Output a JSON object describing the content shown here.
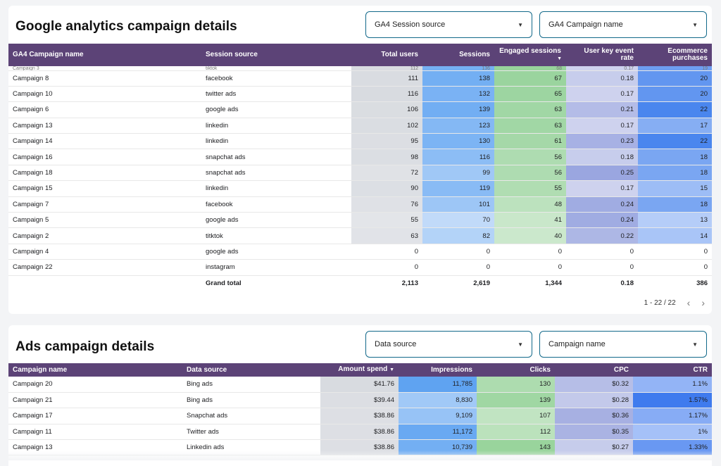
{
  "ga_section": {
    "title": "Google analytics campaign details",
    "filters": [
      {
        "label": "GA4 Session source"
      },
      {
        "label": "GA4 Campaign name"
      }
    ],
    "columns": [
      "GA4 Campaign name",
      "Session source",
      "Total users",
      "Sessions",
      "Engaged sessions",
      "User key event rate",
      "Ecommerce purchases"
    ],
    "partial_row": [
      "Campaign 3",
      "tiktok",
      "112",
      "136",
      "68",
      "0.17",
      "19"
    ],
    "rows": [
      [
        "Campaign 8",
        "facebook",
        "111",
        "138",
        "67",
        "0.18",
        "20"
      ],
      [
        "Campaign 10",
        "twitter ads",
        "116",
        "132",
        "65",
        "0.17",
        "20"
      ],
      [
        "Campaign 6",
        "google ads",
        "106",
        "139",
        "63",
        "0.21",
        "22"
      ],
      [
        "Campaign 13",
        "linkedin",
        "102",
        "123",
        "63",
        "0.17",
        "17"
      ],
      [
        "Campaign 14",
        "linkedin",
        "95",
        "130",
        "61",
        "0.23",
        "22"
      ],
      [
        "Campaign 16",
        "snapchat ads",
        "98",
        "116",
        "56",
        "0.18",
        "18"
      ],
      [
        "Campaign 18",
        "snapchat ads",
        "72",
        "99",
        "56",
        "0.25",
        "18"
      ],
      [
        "Campaign 15",
        "linkedin",
        "90",
        "119",
        "55",
        "0.17",
        "15"
      ],
      [
        "Campaign 7",
        "facebook",
        "76",
        "101",
        "48",
        "0.24",
        "18"
      ],
      [
        "Campaign 5",
        "google ads",
        "55",
        "70",
        "41",
        "0.24",
        "13"
      ],
      [
        "Campaign 2",
        "titktok",
        "63",
        "82",
        "40",
        "0.22",
        "14"
      ],
      [
        "Campaign 4",
        "google ads",
        "0",
        "0",
        "0",
        "0",
        "0"
      ],
      [
        "Campaign 22",
        "instagram",
        "0",
        "0",
        "0",
        "0",
        "0"
      ]
    ],
    "total": [
      "",
      "Grand total",
      "2,113",
      "2,619",
      "1,344",
      "0.18",
      "386"
    ],
    "pagination": "1 - 22 / 22",
    "heat_colors": {
      "users": [
        "#e6e8ec",
        "#d8dbe0"
      ],
      "sessions": [
        "#dbe9fb",
        "#72aef3"
      ],
      "engaged": [
        "#dcefdc",
        "#98d39c"
      ],
      "rate": [
        "#dfe1f3",
        "#9aa6e0"
      ],
      "purchases": [
        "#d9e5fb",
        "#4a86ee"
      ]
    }
  },
  "ads_section": {
    "title": "Ads campaign details",
    "filters": [
      {
        "label": "Data source"
      },
      {
        "label": "Campaign name"
      }
    ],
    "columns": [
      "Campaign name",
      "Data source",
      "Amount spend",
      "Impressions",
      "Clicks",
      "CPC",
      "CTR"
    ],
    "sort_indicator": "▼",
    "rows": [
      [
        "Campaign 20",
        "Bing ads",
        "$41.76",
        "11,785",
        "130",
        "$0.32",
        "1.1%"
      ],
      [
        "Campaign 21",
        "Bing ads",
        "$39.44",
        "8,830",
        "139",
        "$0.28",
        "1.57%"
      ],
      [
        "Campaign 17",
        "Snapchat ads",
        "$38.86",
        "9,109",
        "107",
        "$0.36",
        "1.17%"
      ],
      [
        "Campaign 11",
        "Twitter ads",
        "$38.86",
        "11,172",
        "112",
        "$0.35",
        "1%"
      ],
      [
        "Campaign 13",
        "Linkedin ads",
        "$38.86",
        "10,739",
        "143",
        "$0.27",
        "1.33%"
      ]
    ],
    "heat": {
      "spend": [
        0.9,
        0.75,
        0.7,
        0.7,
        0.7
      ],
      "impressions": [
        1.0,
        0.35,
        0.45,
        0.9,
        0.8
      ],
      "clicks": [
        0.55,
        0.75,
        0.25,
        0.35,
        0.85
      ],
      "cpc": [
        0.55,
        0.35,
        0.8,
        0.75,
        0.3
      ],
      "ctr": [
        0.3,
        1.0,
        0.4,
        0.15,
        0.65
      ]
    },
    "heat_colors": {
      "spend": [
        "#eceef1",
        "#d6d9de"
      ],
      "impressions": [
        "#c4ddfa",
        "#5fa3f1"
      ],
      "clicks": [
        "#d2ebd2",
        "#8fd093"
      ],
      "cpc": [
        "#d9dcf1",
        "#9aa5de"
      ],
      "ctr": [
        "#b7cdfa",
        "#3f7bee"
      ]
    }
  }
}
